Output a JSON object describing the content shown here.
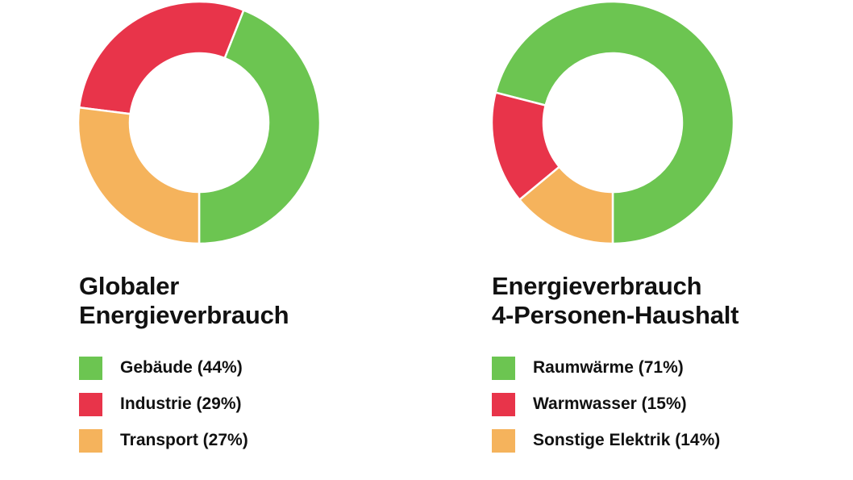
{
  "chart_data": [
    {
      "type": "pie",
      "title_lines": [
        "Globaler",
        "Energieverbrauch"
      ],
      "categories": [
        "Gebäude (44%)",
        "Industrie (29%)",
        "Transport (27%)"
      ],
      "values": [
        44,
        29,
        27
      ],
      "colors": [
        "#6cc551",
        "#e8344a",
        "#f5b35c"
      ]
    },
    {
      "type": "pie",
      "title_lines": [
        "Energieverbrauch",
        "4-Personen-Haushalt"
      ],
      "categories": [
        "Raumwärme (71%)",
        "Warmwasser (15%)",
        "Sonstige Elektrik (14%)"
      ],
      "values": [
        71,
        15,
        14
      ],
      "colors": [
        "#6cc551",
        "#e8344a",
        "#f5b35c"
      ]
    }
  ]
}
